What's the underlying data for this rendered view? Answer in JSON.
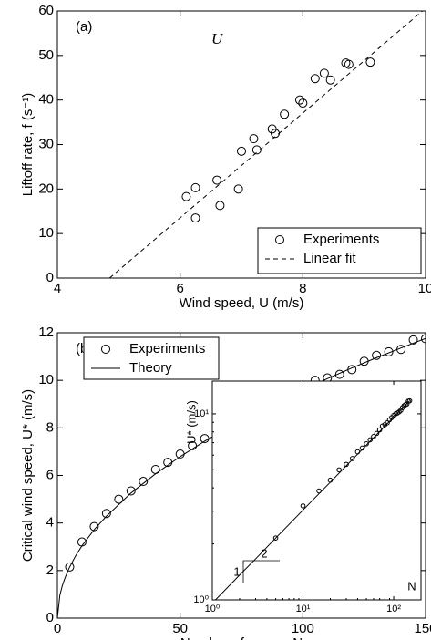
{
  "chart_data": [
    {
      "type": "scatter",
      "panel_label": "(a)",
      "annotation": "U",
      "xlabel": "Wind speed, U (m/s)",
      "ylabel": "Liftoff rate, f (s⁻¹)",
      "xlim": [
        4,
        10
      ],
      "xticks": [
        4,
        6,
        8,
        10
      ],
      "ylim": [
        0,
        60
      ],
      "yticks": [
        0,
        10,
        20,
        30,
        40,
        50,
        60
      ],
      "legend": "lower right",
      "series": [
        {
          "name": "Experiments",
          "type": "scatter",
          "color": "#000000",
          "x": [
            6.1,
            6.25,
            6.25,
            6.6,
            6.65,
            6.95,
            7.0,
            7.2,
            7.25,
            7.5,
            7.55,
            7.7,
            7.95,
            8.0,
            8.2,
            8.35,
            8.45,
            8.7,
            8.75,
            9.1
          ],
          "values": [
            18.3,
            13.5,
            20.3,
            22,
            16.3,
            20,
            28.5,
            31.3,
            28.8,
            33.5,
            32.5,
            36.8,
            40,
            39.3,
            44.8,
            46,
            44.5,
            48.3,
            48,
            48.5
          ]
        },
        {
          "name": "Linear fit",
          "type": "line",
          "dash": true,
          "color": "#000000",
          "x": [
            4.85,
            9.95
          ],
          "values": [
            0,
            60
          ]
        }
      ]
    },
    {
      "type": "scatter",
      "panel_label": "(b)",
      "xlabel": "Number of pages, N",
      "ylabel": "Critical wind speed, U* (m/s)",
      "xlim": [
        0,
        150
      ],
      "xticks": [
        0,
        50,
        100,
        150
      ],
      "ylim": [
        0,
        12
      ],
      "yticks": [
        0,
        2,
        4,
        6,
        8,
        10,
        12
      ],
      "legend": "upper left",
      "series": [
        {
          "name": "Experiments",
          "type": "scatter",
          "color": "#000000",
          "x": [
            5,
            10,
            15,
            20,
            25,
            30,
            35,
            40,
            45,
            50,
            55,
            60,
            65,
            70,
            75,
            80,
            85,
            90,
            95,
            100,
            105,
            110,
            115,
            120,
            125,
            130,
            135,
            140,
            145,
            150
          ],
          "values": [
            2.15,
            3.2,
            3.85,
            4.4,
            5.0,
            5.35,
            5.75,
            6.25,
            6.55,
            6.9,
            7.25,
            7.55,
            7.85,
            8.2,
            8.6,
            8.75,
            8.95,
            9.3,
            9.55,
            9.8,
            10.0,
            10.1,
            10.25,
            10.45,
            10.8,
            11.05,
            11.2,
            11.3,
            11.7,
            11.75
          ]
        },
        {
          "name": "Theory",
          "type": "line",
          "color": "#000000",
          "x": [
            0,
            1,
            2,
            3,
            4,
            5,
            7.5,
            10,
            15,
            20,
            30,
            40,
            50,
            60,
            70,
            80,
            90,
            100,
            110,
            120,
            130,
            140,
            150
          ],
          "values": [
            0,
            0.96,
            1.36,
            1.66,
            1.92,
            2.15,
            2.63,
            3.04,
            3.72,
            4.29,
            5.26,
            6.07,
            6.79,
            7.44,
            8.03,
            8.59,
            9.11,
            9.6,
            10.07,
            10.52,
            10.95,
            11.36,
            11.76
          ]
        }
      ]
    },
    {
      "type": "scatter",
      "log_scale": true,
      "xlabel": "N",
      "ylabel": "U* (m/s)",
      "slope_labels": [
        "1",
        "2"
      ],
      "xlim": [
        1,
        200
      ],
      "xticks": [
        {
          "value": 1,
          "label": "10⁰"
        },
        {
          "value": 10,
          "label": "10¹"
        },
        {
          "value": 100,
          "label": "10²"
        }
      ],
      "ylim": [
        1,
        15
      ],
      "yticks": [
        {
          "value": 1,
          "label": "10⁰"
        },
        {
          "value": 10,
          "label": "10¹"
        }
      ],
      "series": [
        {
          "type": "scatter",
          "color": "#000000",
          "x": [
            5,
            10,
            15,
            20,
            25,
            30,
            35,
            40,
            45,
            50,
            55,
            60,
            65,
            70,
            75,
            80,
            85,
            90,
            95,
            100,
            105,
            110,
            115,
            120,
            125,
            130,
            135,
            140,
            145,
            150
          ],
          "values": [
            2.15,
            3.2,
            3.85,
            4.4,
            5.0,
            5.35,
            5.75,
            6.25,
            6.55,
            6.9,
            7.25,
            7.55,
            7.85,
            8.2,
            8.6,
            8.75,
            8.95,
            9.3,
            9.55,
            9.8,
            10.0,
            10.1,
            10.25,
            10.45,
            10.8,
            11.05,
            11.2,
            11.3,
            11.7,
            11.75
          ]
        },
        {
          "type": "line",
          "color": "#000000",
          "x": [
            1,
            2,
            3,
            4,
            5,
            7.5,
            10,
            15,
            20,
            30,
            40,
            50,
            60,
            70,
            80,
            90,
            100,
            110,
            120,
            130,
            140,
            150
          ],
          "values": [
            0.96,
            1.36,
            1.66,
            1.92,
            2.15,
            2.63,
            3.04,
            3.72,
            4.29,
            5.26,
            6.07,
            6.79,
            7.44,
            8.03,
            8.59,
            9.11,
            9.6,
            10.07,
            10.52,
            10.95,
            11.36,
            11.76
          ]
        }
      ]
    }
  ]
}
